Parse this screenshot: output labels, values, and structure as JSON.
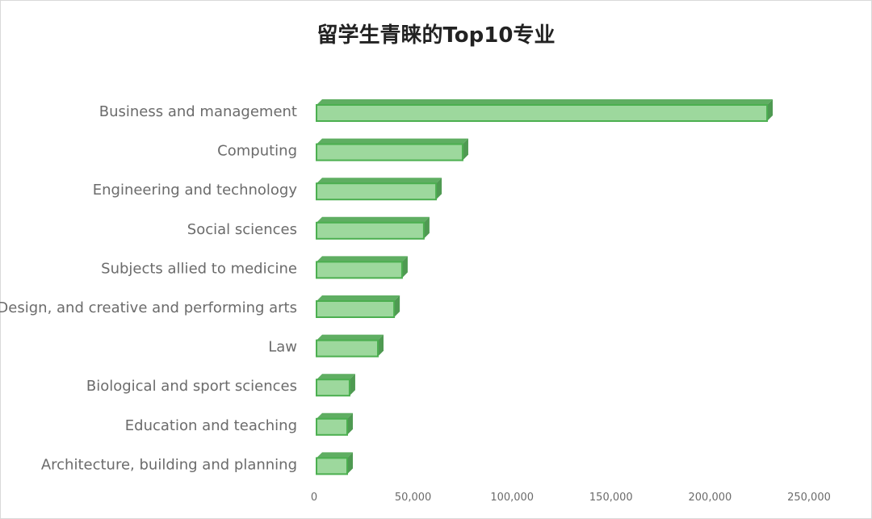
{
  "chart_data": {
    "type": "bar",
    "orientation": "horizontal",
    "style": "3d",
    "title": "留学生青睐的Top10专业",
    "xlabel": "",
    "ylabel": "",
    "categories": [
      "Business and management",
      "Computing",
      "Engineering and technology",
      "Social sciences",
      "Subjects allied to medicine",
      "Design, and creative and performing arts",
      "Law",
      "Biological and sport sciences",
      "Education and teaching",
      "Architecture, building and planning"
    ],
    "values": [
      227600,
      73800,
      60400,
      54200,
      43200,
      39200,
      31000,
      16700,
      15500,
      15500
    ],
    "xlim": [
      0,
      250000
    ],
    "xticks": [
      0,
      50000,
      100000,
      150000,
      200000,
      250000
    ],
    "xtick_labels": [
      "0",
      "50,000",
      "100,000",
      "150,000",
      "200,000",
      "250,000"
    ],
    "grid": false,
    "legend": "none",
    "colors": {
      "front": "#9dd89d",
      "top": "#5fae62",
      "side": "#4f9a52",
      "edge": "#4caf50"
    }
  }
}
